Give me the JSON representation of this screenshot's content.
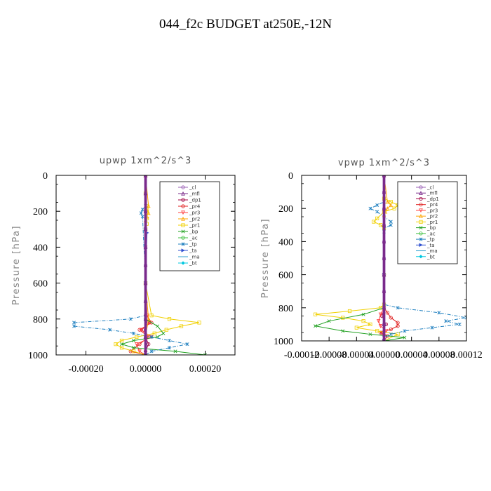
{
  "figure_title": "044_f2c  BUDGET at250E,-12N",
  "chart_data": [
    {
      "type": "line",
      "title": "upwp   1xm^2/s^3",
      "ylabel": "Pressure  [hPa]",
      "ylim": [
        0,
        1000
      ],
      "y_inverted": true,
      "yticks": [
        0,
        200,
        400,
        600,
        800,
        1000
      ],
      "xlim": [
        -0.0003,
        0.0003
      ],
      "xticks": [
        -0.0002,
        0.0,
        0.0002
      ],
      "xtick_labels": [
        "-0.00020",
        "0.00000",
        "0.00020"
      ],
      "legend_position": "upper-right",
      "series": [
        {
          "name": "_cl",
          "color": "#9a5fb4",
          "marker": "circle",
          "y": [
            0,
            100,
            200,
            300,
            400,
            500,
            600,
            700,
            800,
            900,
            1000
          ],
          "x": [
            0,
            0,
            0,
            0,
            0,
            0,
            0,
            0,
            0,
            0,
            0
          ]
        },
        {
          "name": "_mfl",
          "color": "#7a2a8a",
          "marker": "triangle",
          "y": [
            0,
            100,
            200,
            300,
            400,
            500,
            600,
            700,
            800,
            900,
            1000
          ],
          "x": [
            0,
            0,
            0,
            0,
            0,
            0,
            0,
            0,
            0,
            0,
            0
          ]
        },
        {
          "name": "_dp1",
          "color": "#a00040",
          "marker": "circle",
          "y": [
            0,
            200,
            400,
            600,
            780,
            820,
            860,
            900,
            940,
            980,
            1000
          ],
          "x": [
            0,
            0,
            0,
            0,
            0,
            5e-06,
            -5e-06,
            0,
            1e-05,
            0,
            0
          ]
        },
        {
          "name": "_pr4",
          "color": "#e02020",
          "marker": "circle",
          "y": [
            0,
            200,
            400,
            600,
            780,
            820,
            860,
            900,
            940,
            980,
            1000
          ],
          "x": [
            0,
            0,
            0,
            0,
            5e-06,
            2e-05,
            -2e-05,
            1e-05,
            -2e-05,
            -5e-05,
            0
          ]
        },
        {
          "name": "_pr3",
          "color": "#ff4040",
          "marker": "triangle-down",
          "y": [
            0,
            200,
            400,
            600,
            780,
            820,
            860,
            900,
            940,
            980,
            1000
          ],
          "x": [
            0,
            0,
            0,
            0,
            5e-06,
            1.5e-05,
            -1.5e-05,
            2e-05,
            -3e-05,
            -2e-05,
            0
          ]
        },
        {
          "name": "_pr2",
          "color": "#ffa500",
          "marker": "triangle",
          "y": [
            0,
            170,
            190,
            210,
            230,
            250,
            600,
            800,
            900,
            1000
          ],
          "x": [
            0,
            1e-05,
            4e-06,
            1e-05,
            4e-06,
            0,
            0,
            1e-05,
            0,
            0
          ]
        },
        {
          "name": "_pr1",
          "color": "#f0d000",
          "marker": "square",
          "y": [
            0,
            100,
            170,
            190,
            210,
            240,
            270,
            300,
            600,
            780,
            800,
            820,
            840,
            860,
            880,
            900,
            920,
            940,
            960,
            980,
            1000
          ],
          "x": [
            0,
            0,
            4e-06,
            5e-06,
            4e-06,
            5e-06,
            4e-06,
            0,
            0,
            2e-05,
            8e-05,
            0.00018,
            0.00012,
            7e-05,
            3e-05,
            -3e-05,
            -8e-05,
            -0.0001,
            -8e-05,
            -4e-05,
            0
          ]
        },
        {
          "name": "_bp",
          "color": "#20a020",
          "marker": "x",
          "y": [
            0,
            600,
            800,
            840,
            880,
            900,
            920,
            940,
            960,
            980,
            1000
          ],
          "x": [
            0,
            0,
            0,
            4e-05,
            6e-05,
            4e-05,
            -4e-05,
            -8e-05,
            -4e-05,
            0.0001,
            0.0002
          ]
        },
        {
          "name": "_ac",
          "color": "#40c040",
          "marker": "circle",
          "y": [
            0,
            600,
            800,
            900,
            1000
          ],
          "x": [
            0,
            0,
            0,
            0,
            0
          ]
        },
        {
          "name": "_tp",
          "color": "#2080c0",
          "marker": "star",
          "y": [
            0,
            170,
            190,
            210,
            230,
            600,
            780,
            800,
            820,
            840,
            860,
            880,
            900,
            920,
            940,
            960,
            980,
            1000
          ],
          "x": [
            0,
            0,
            -1e-05,
            -1.5e-05,
            -1e-05,
            0,
            0,
            -5e-05,
            -0.00024,
            -0.00024,
            -0.00012,
            -4e-05,
            2e-05,
            8e-05,
            0.00014,
            8e-05,
            2e-05,
            0
          ]
        },
        {
          "name": "_ta",
          "color": "#3050d0",
          "marker": "triangle-right",
          "y": [
            0,
            300,
            320,
            600,
            1000
          ],
          "x": [
            0,
            0,
            5e-06,
            0,
            0
          ]
        },
        {
          "name": "_ma",
          "color": "#30a0d0",
          "marker": "none",
          "y": [
            0,
            600,
            1000
          ],
          "x": [
            0,
            0,
            0
          ]
        },
        {
          "name": "_bt",
          "color": "#00c8e0",
          "marker": "diamond",
          "y": [
            0,
            600,
            1000
          ],
          "x": [
            0,
            0,
            0
          ]
        }
      ]
    },
    {
      "type": "line",
      "title": "vpwp   1xm^2/s^3",
      "ylabel": "Pressure  [hPa]",
      "ylim": [
        0,
        1000
      ],
      "y_inverted": true,
      "yticks": [
        0,
        200,
        400,
        600,
        800,
        1000
      ],
      "xlim": [
        -0.00012,
        0.00012
      ],
      "xticks": [
        -0.00012,
        -8e-05,
        -4e-05,
        0.0,
        4e-05,
        8e-05,
        0.00012
      ],
      "xtick_labels": [
        "-0.00012",
        "-0.00008",
        "-0.00004",
        "0.00000",
        "0.00004",
        "0.00008",
        "0.00012"
      ],
      "legend_position": "upper-right",
      "series": [
        {
          "name": "_cl",
          "color": "#9a5fb4",
          "marker": "circle",
          "y": [
            0,
            100,
            200,
            300,
            400,
            500,
            600,
            700,
            800,
            900,
            1000
          ],
          "x": [
            0,
            0,
            0,
            0,
            0,
            0,
            0,
            0,
            0,
            0,
            0
          ]
        },
        {
          "name": "_mfl",
          "color": "#7a2a8a",
          "marker": "triangle",
          "y": [
            0,
            100,
            200,
            300,
            400,
            500,
            600,
            700,
            800,
            900,
            1000
          ],
          "x": [
            0,
            0,
            0,
            0,
            0,
            0,
            0,
            0,
            0,
            0,
            0
          ]
        },
        {
          "name": "_dp1",
          "color": "#a00040",
          "marker": "circle",
          "y": [
            0,
            600,
            800,
            850,
            900,
            950,
            1000
          ],
          "x": [
            0,
            0,
            0,
            -3e-06,
            3e-06,
            -3e-06,
            0
          ]
        },
        {
          "name": "_pr4",
          "color": "#e02020",
          "marker": "circle",
          "y": [
            0,
            600,
            800,
            830,
            860,
            890,
            910,
            930,
            950,
            970,
            1000
          ],
          "x": [
            0,
            0,
            0,
            5e-06,
            1e-05,
            2e-05,
            2e-05,
            1e-05,
            -5e-06,
            5e-06,
            0
          ]
        },
        {
          "name": "_pr3",
          "color": "#ff4040",
          "marker": "triangle-down",
          "y": [
            0,
            600,
            800,
            840,
            880,
            910,
            940,
            970,
            1000
          ],
          "x": [
            0,
            0,
            0,
            -5e-06,
            -8e-06,
            -5e-06,
            3e-06,
            0,
            0
          ]
        },
        {
          "name": "_pr2",
          "color": "#ffa500",
          "marker": "triangle",
          "y": [
            0,
            160,
            180,
            200,
            220,
            240,
            600,
            800,
            1000
          ],
          "x": [
            0,
            5e-06,
            1e-05,
            5e-06,
            2e-06,
            0,
            0,
            0,
            0
          ]
        },
        {
          "name": "_pr1",
          "color": "#f0d000",
          "marker": "square",
          "y": [
            0,
            140,
            160,
            180,
            200,
            220,
            260,
            280,
            300,
            320,
            600,
            780,
            800,
            820,
            840,
            860,
            880,
            900,
            920,
            940,
            960,
            1000
          ],
          "x": [
            0,
            0,
            1e-05,
            2e-05,
            1.5e-05,
            0,
            -1e-05,
            -1.5e-05,
            -5e-06,
            0,
            0,
            0,
            -5e-06,
            -5e-05,
            -0.0001,
            -6e-05,
            -3e-05,
            -2e-05,
            -4e-05,
            -1e-05,
            2e-05,
            0
          ]
        },
        {
          "name": "_bp",
          "color": "#20a020",
          "marker": "x",
          "y": [
            0,
            600,
            800,
            840,
            880,
            910,
            940,
            960,
            980,
            1000
          ],
          "x": [
            0,
            0,
            0,
            -3e-05,
            -8e-05,
            -0.0001,
            -6e-05,
            -2e-05,
            3e-05,
            0
          ]
        },
        {
          "name": "_ac",
          "color": "#40c040",
          "marker": "circle",
          "y": [
            0,
            600,
            1000
          ],
          "x": [
            0,
            0,
            0
          ]
        },
        {
          "name": "_tp",
          "color": "#2080c0",
          "marker": "star",
          "y": [
            0,
            160,
            180,
            200,
            220,
            250,
            280,
            300,
            320,
            340,
            600,
            780,
            800,
            830,
            860,
            880,
            900,
            920,
            940,
            960,
            980,
            1000
          ],
          "x": [
            0,
            0,
            -1e-05,
            -2e-05,
            -1e-05,
            0,
            1e-05,
            1e-05,
            0,
            0,
            0,
            0,
            2e-05,
            8e-05,
            0.00012,
            9e-05,
            0.00011,
            7e-05,
            3e-05,
            1e-05,
            0,
            0
          ]
        },
        {
          "name": "_ta",
          "color": "#3050d0",
          "marker": "triangle-right",
          "y": [
            0,
            600,
            1000
          ],
          "x": [
            0,
            0,
            0
          ]
        },
        {
          "name": "_ma",
          "color": "#30a0d0",
          "marker": "none",
          "y": [
            0,
            600,
            1000
          ],
          "x": [
            0,
            0,
            0
          ]
        },
        {
          "name": "_bt",
          "color": "#00c8e0",
          "marker": "diamond",
          "y": [
            0,
            600,
            1000
          ],
          "x": [
            0,
            0,
            0
          ]
        }
      ]
    }
  ]
}
